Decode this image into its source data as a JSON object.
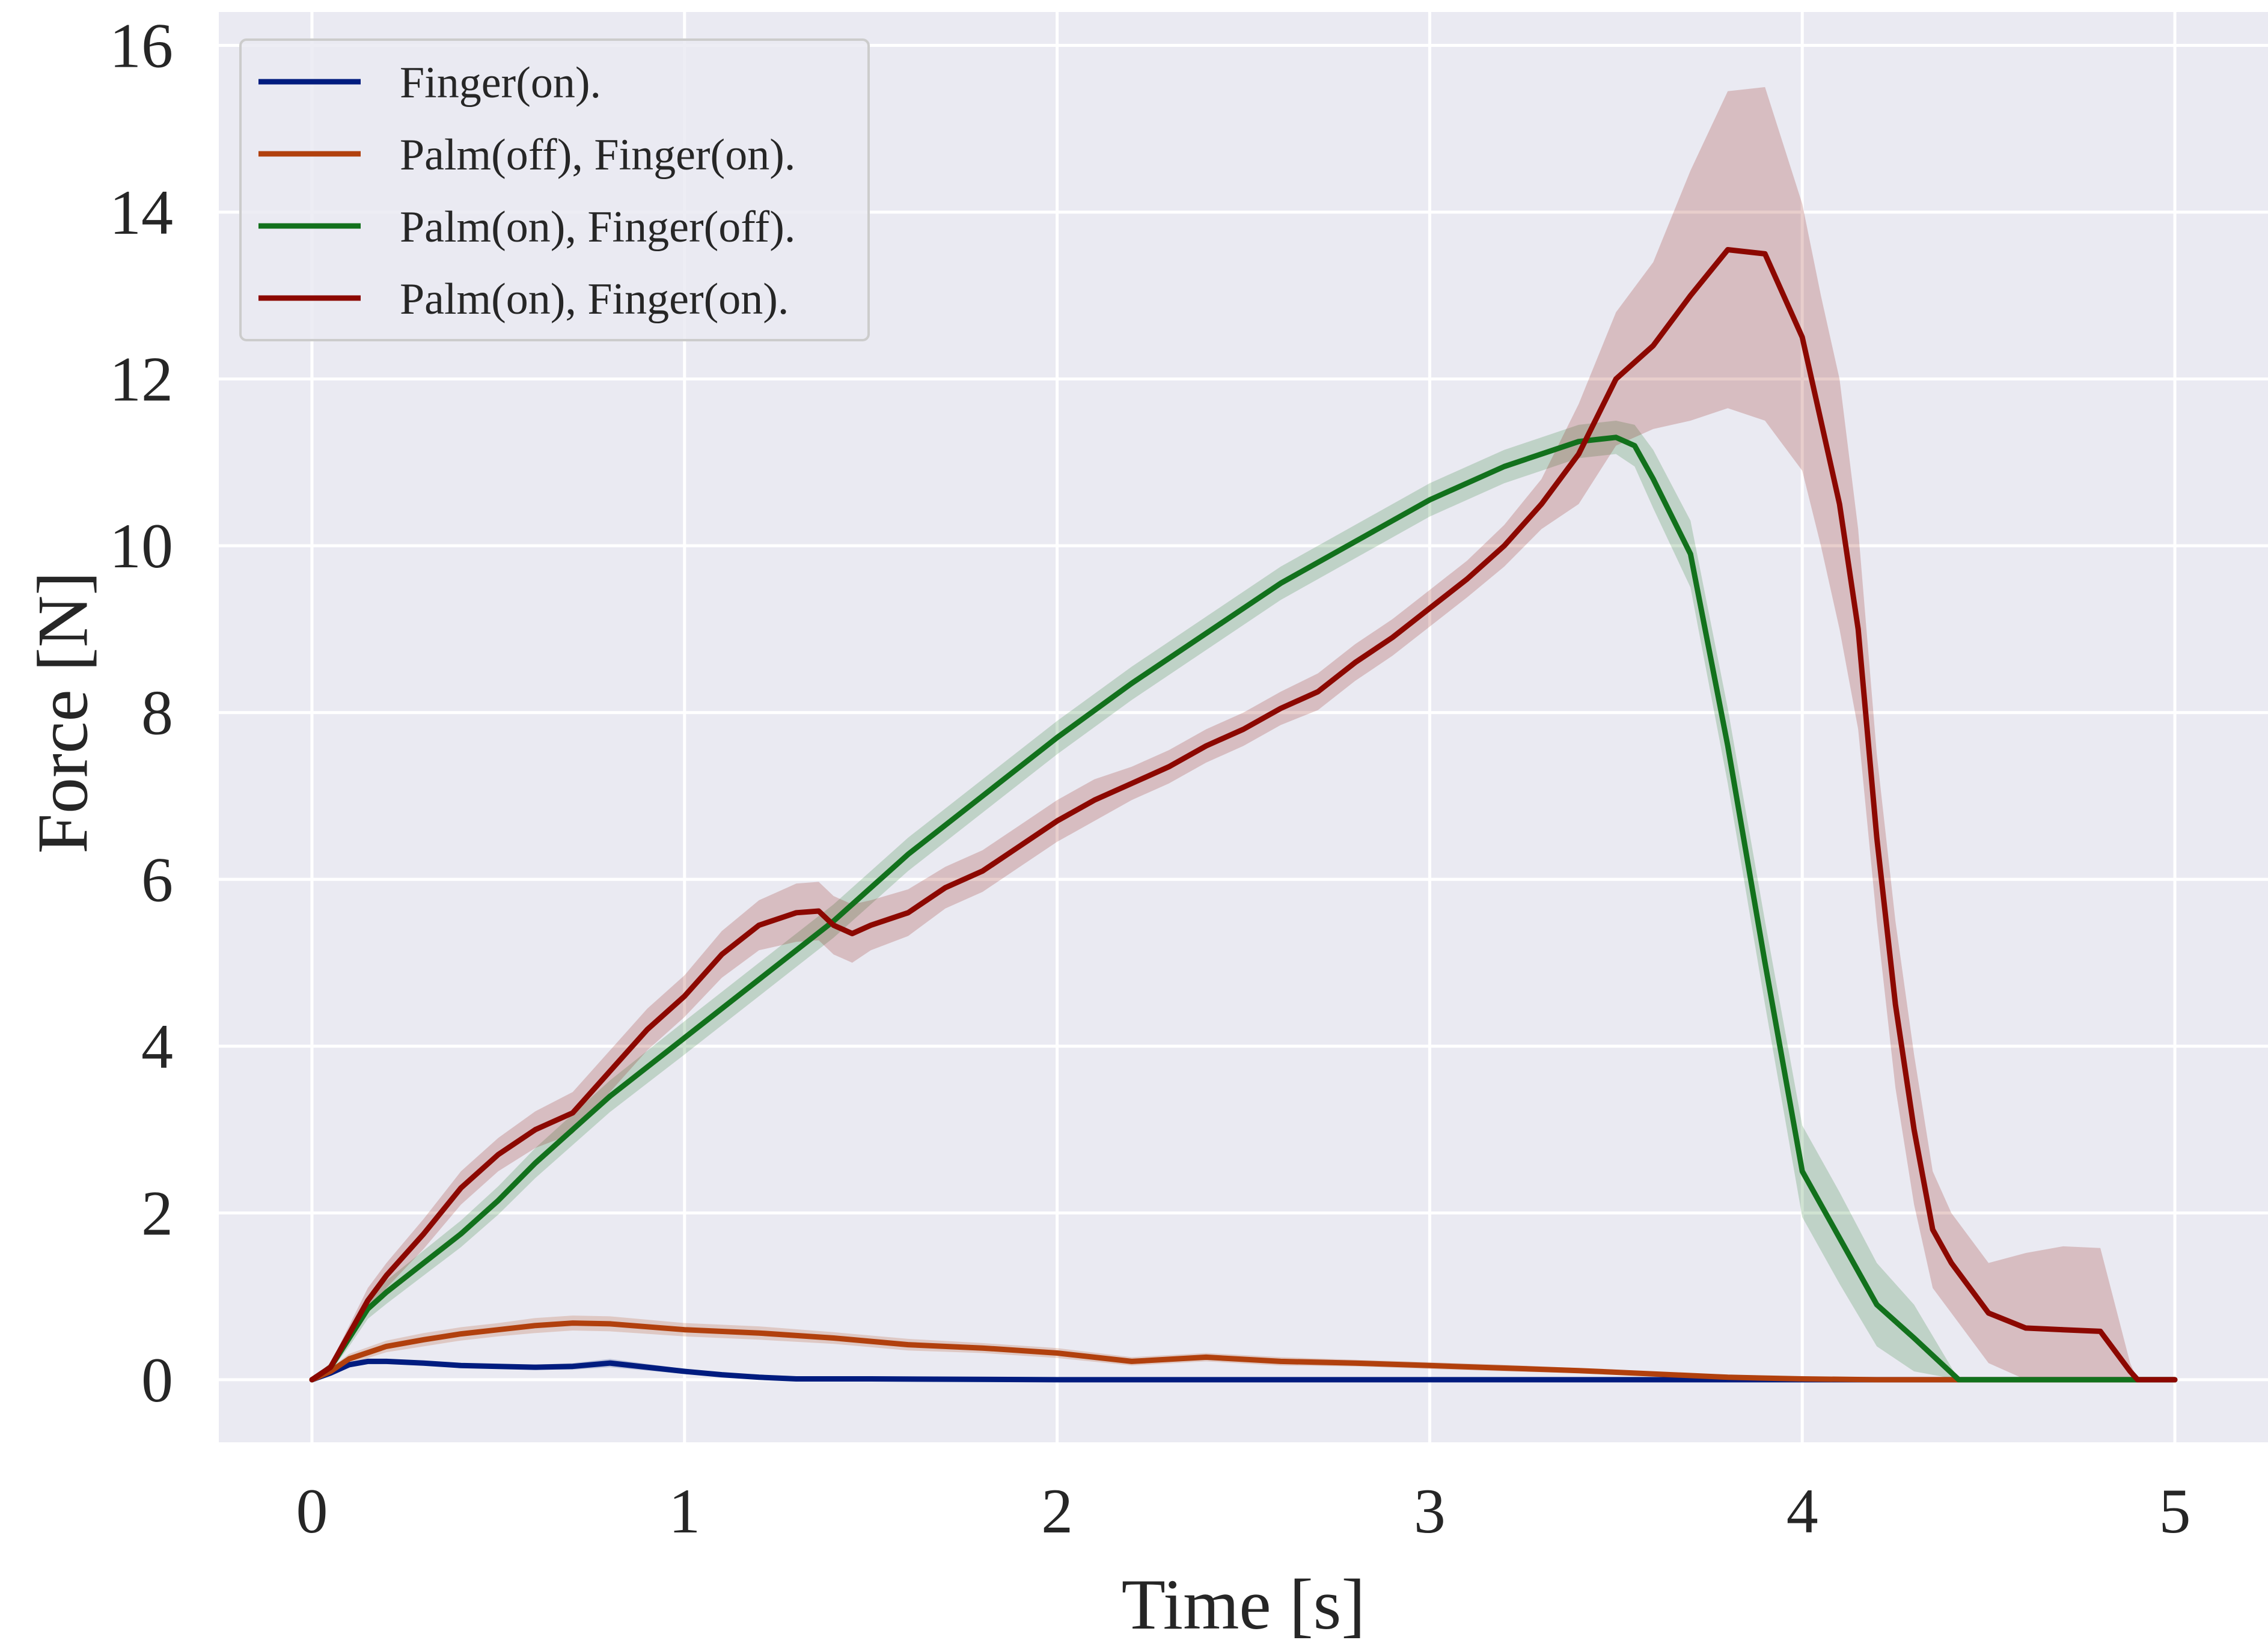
{
  "chart_data": {
    "type": "line",
    "xlabel": "Time [s]",
    "ylabel": "Force [N]",
    "xlim": [
      -0.25,
      5.25
    ],
    "ylim": [
      -0.75,
      16.4
    ],
    "xticks": [
      0,
      1,
      2,
      3,
      4,
      5
    ],
    "yticks": [
      0,
      2,
      4,
      6,
      8,
      10,
      12,
      14,
      16
    ],
    "grid": true,
    "legend_position": "top-left",
    "background_color": "#eaeaf2",
    "grid_color": "#ffffff",
    "series": [
      {
        "name": "Finger(on).",
        "color": "#001c7f",
        "x": [
          0,
          0.05,
          0.1,
          0.15,
          0.2,
          0.3,
          0.4,
          0.5,
          0.6,
          0.7,
          0.8,
          0.9,
          1.0,
          1.1,
          1.2,
          1.3,
          1.5,
          2.0,
          3.0,
          4.0,
          5.0
        ],
        "y": [
          0,
          0.08,
          0.18,
          0.22,
          0.22,
          0.2,
          0.17,
          0.16,
          0.15,
          0.16,
          0.2,
          0.15,
          0.1,
          0.06,
          0.03,
          0.01,
          0.01,
          0.0,
          0.0,
          0.0,
          0.0
        ],
        "band": [
          0.02,
          0.02,
          0.03,
          0.03,
          0.03,
          0.03,
          0.03,
          0.03,
          0.03,
          0.04,
          0.05,
          0.04,
          0.03,
          0.02,
          0.02,
          0.01,
          0.01,
          0.01,
          0.0,
          0.0,
          0.0
        ]
      },
      {
        "name": "Palm(off), Finger(on).",
        "color": "#b1400d",
        "x": [
          0,
          0.05,
          0.1,
          0.2,
          0.3,
          0.4,
          0.5,
          0.6,
          0.7,
          0.8,
          1.0,
          1.2,
          1.4,
          1.6,
          1.8,
          2.0,
          2.2,
          2.4,
          2.6,
          2.8,
          3.0,
          3.2,
          3.4,
          3.6,
          3.8,
          4.0,
          4.2,
          5.0
        ],
        "y": [
          0,
          0.1,
          0.25,
          0.4,
          0.48,
          0.55,
          0.6,
          0.65,
          0.68,
          0.67,
          0.6,
          0.56,
          0.5,
          0.42,
          0.38,
          0.32,
          0.22,
          0.27,
          0.22,
          0.2,
          0.17,
          0.14,
          0.11,
          0.07,
          0.03,
          0.01,
          0.0,
          0.0
        ],
        "band": [
          0.02,
          0.04,
          0.06,
          0.07,
          0.08,
          0.08,
          0.08,
          0.09,
          0.09,
          0.09,
          0.08,
          0.08,
          0.07,
          0.07,
          0.06,
          0.06,
          0.05,
          0.05,
          0.05,
          0.04,
          0.04,
          0.04,
          0.03,
          0.03,
          0.02,
          0.01,
          0.0,
          0.0
        ]
      },
      {
        "name": "Palm(on), Finger(off).",
        "color": "#12711c",
        "x": [
          0,
          0.05,
          0.1,
          0.15,
          0.2,
          0.3,
          0.4,
          0.5,
          0.6,
          0.8,
          1.0,
          1.2,
          1.4,
          1.6,
          1.8,
          2.0,
          2.2,
          2.4,
          2.6,
          2.8,
          3.0,
          3.2,
          3.4,
          3.5,
          3.55,
          3.6,
          3.7,
          3.8,
          3.9,
          4.0,
          4.1,
          4.2,
          4.3,
          4.42,
          4.5,
          5.0
        ],
        "y": [
          0,
          0.15,
          0.5,
          0.85,
          1.05,
          1.4,
          1.75,
          2.15,
          2.6,
          3.4,
          4.1,
          4.8,
          5.5,
          6.3,
          7.0,
          7.7,
          8.35,
          8.95,
          9.55,
          10.05,
          10.55,
          10.95,
          11.25,
          11.3,
          11.2,
          10.8,
          9.9,
          7.6,
          5.0,
          2.5,
          1.7,
          0.9,
          0.5,
          0.0,
          0.0,
          0.0
        ],
        "band": [
          0.02,
          0.05,
          0.1,
          0.12,
          0.14,
          0.15,
          0.16,
          0.17,
          0.18,
          0.19,
          0.2,
          0.2,
          0.2,
          0.2,
          0.2,
          0.2,
          0.2,
          0.2,
          0.2,
          0.2,
          0.2,
          0.2,
          0.2,
          0.2,
          0.25,
          0.35,
          0.4,
          0.45,
          0.5,
          0.55,
          0.55,
          0.5,
          0.4,
          0.0,
          0.0,
          0.0
        ]
      },
      {
        "name": "Palm(on), Finger(on).",
        "color": "#8c0800",
        "x": [
          0,
          0.05,
          0.1,
          0.15,
          0.2,
          0.3,
          0.4,
          0.5,
          0.6,
          0.7,
          0.8,
          0.9,
          1.0,
          1.1,
          1.2,
          1.3,
          1.36,
          1.4,
          1.45,
          1.5,
          1.6,
          1.7,
          1.8,
          1.9,
          2.0,
          2.1,
          2.2,
          2.3,
          2.4,
          2.5,
          2.6,
          2.7,
          2.8,
          2.9,
          3.0,
          3.1,
          3.2,
          3.3,
          3.4,
          3.5,
          3.6,
          3.7,
          3.8,
          3.9,
          4.0,
          4.05,
          4.1,
          4.15,
          4.2,
          4.25,
          4.3,
          4.35,
          4.4,
          4.5,
          4.6,
          4.7,
          4.8,
          4.88,
          4.9,
          5.0
        ],
        "y": [
          0,
          0.15,
          0.55,
          0.95,
          1.25,
          1.75,
          2.3,
          2.7,
          3.0,
          3.2,
          3.7,
          4.2,
          4.6,
          5.1,
          5.45,
          5.6,
          5.62,
          5.45,
          5.35,
          5.45,
          5.6,
          5.9,
          6.1,
          6.4,
          6.7,
          6.95,
          7.15,
          7.35,
          7.6,
          7.8,
          8.05,
          8.25,
          8.6,
          8.9,
          9.25,
          9.6,
          10.0,
          10.5,
          11.1,
          12.0,
          12.4,
          13.0,
          13.55,
          13.5,
          12.5,
          11.5,
          10.5,
          9.0,
          6.5,
          4.5,
          3.0,
          1.8,
          1.4,
          0.8,
          0.62,
          0.6,
          0.58,
          0.1,
          0.0,
          0.0
        ],
        "band": [
          0.02,
          0.05,
          0.1,
          0.15,
          0.15,
          0.18,
          0.2,
          0.2,
          0.22,
          0.25,
          0.25,
          0.25,
          0.25,
          0.28,
          0.3,
          0.35,
          0.35,
          0.35,
          0.35,
          0.3,
          0.28,
          0.25,
          0.25,
          0.25,
          0.25,
          0.25,
          0.2,
          0.2,
          0.2,
          0.2,
          0.2,
          0.22,
          0.22,
          0.22,
          0.22,
          0.22,
          0.25,
          0.3,
          0.6,
          0.8,
          1.0,
          1.5,
          1.9,
          2.0,
          1.6,
          1.5,
          1.5,
          1.2,
          1.0,
          1.0,
          0.9,
          0.7,
          0.6,
          0.6,
          0.9,
          1.0,
          1.0,
          0.1,
          0.0,
          0.0
        ]
      }
    ]
  }
}
